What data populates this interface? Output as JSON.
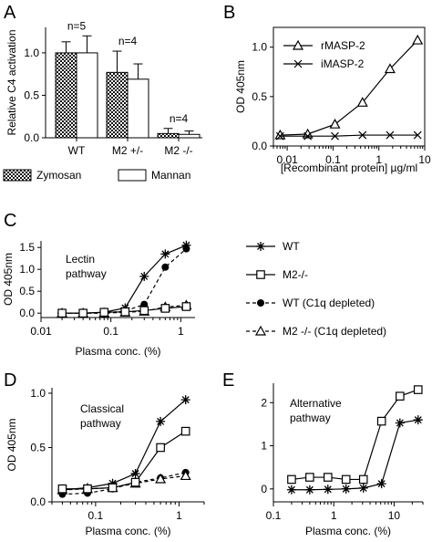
{
  "colors": {
    "ink": "#000000",
    "bar_fill_open": "#ffffff",
    "zymosan_pattern": "checkered-dark"
  },
  "legend_AB": {
    "zymosan": "Zymosan",
    "mannan": "Mannan"
  },
  "legend_CDE": {
    "wt": "WT",
    "m2": "M2-/-",
    "wt_c1q": "WT (C1q depleted)",
    "m2_c1q": "M2 -/- (C1q depleted)"
  },
  "chart_data": [
    {
      "panel": "A",
      "type": "bar",
      "ylabel": "Relative C4 activation",
      "ylim": [
        0,
        1.3
      ],
      "yticks": [
        "0.0",
        "0.5",
        "1.0"
      ],
      "categories": [
        "WT",
        "M2 +/-",
        "M2 -/-"
      ],
      "annotations": [
        "n=5",
        "n=4",
        "n=4"
      ],
      "series": [
        {
          "name": "Zymosan",
          "values": [
            1.0,
            0.77,
            0.05
          ],
          "errors": [
            0.13,
            0.25,
            0.06
          ]
        },
        {
          "name": "Mannan",
          "values": [
            1.0,
            0.69,
            0.04
          ],
          "errors": [
            0.2,
            0.18,
            0.04
          ]
        }
      ],
      "legend": "bottom"
    },
    {
      "panel": "B",
      "type": "line",
      "xlabel": "[Recombinant protein] µg/ml",
      "ylabel": "OD 405nm",
      "xscale": "log",
      "xlim": [
        0.005,
        10
      ],
      "ylim": [
        0,
        1.2
      ],
      "xticks": [
        "0.01",
        "0.1",
        "1",
        "10"
      ],
      "yticks": [
        "0.0",
        "0.5",
        "1.0"
      ],
      "series": [
        {
          "name": "rMASP-2",
          "marker": "triangle",
          "x": [
            0.007,
            0.028,
            0.11,
            0.44,
            1.75,
            7
          ],
          "y": [
            0.11,
            0.12,
            0.22,
            0.44,
            0.78,
            1.07
          ]
        },
        {
          "name": "iMASP-2",
          "marker": "x",
          "x": [
            0.007,
            0.028,
            0.11,
            0.44,
            1.75,
            7
          ],
          "y": [
            0.1,
            0.1,
            0.1,
            0.11,
            0.11,
            0.11
          ]
        }
      ],
      "legend": "top-left"
    },
    {
      "panel": "C",
      "type": "line",
      "annotation": "Lectin\npathway",
      "xlabel": "Plasma conc. (%)",
      "ylabel": "OD 405nm",
      "xscale": "log",
      "xlim": [
        0.01,
        1.6
      ],
      "ylim": [
        -0.1,
        1.65
      ],
      "xticks": [
        "0.01",
        "0.1",
        "1"
      ],
      "yticks": [
        "0.0",
        "0.5",
        "1.0",
        "1.5"
      ],
      "series": [
        {
          "name": "WT",
          "marker": "star",
          "x": [
            0.02,
            0.04,
            0.08,
            0.16,
            0.3,
            0.6,
            1.2
          ],
          "y": [
            0.0,
            0.0,
            0.02,
            0.12,
            0.84,
            1.35,
            1.55
          ]
        },
        {
          "name": "M2-/-",
          "marker": "square",
          "x": [
            0.02,
            0.04,
            0.08,
            0.16,
            0.3,
            0.6,
            1.2
          ],
          "y": [
            0.0,
            0.0,
            0.02,
            0.03,
            0.06,
            0.11,
            0.15
          ]
        },
        {
          "name": "WT (C1q depleted)",
          "marker": "circle",
          "x": [
            0.02,
            0.04,
            0.08,
            0.16,
            0.3,
            0.6,
            1.2
          ],
          "y": [
            0.0,
            0.0,
            0.0,
            0.05,
            0.2,
            1.05,
            1.47
          ]
        },
        {
          "name": "M2 -/- (C1q depleted)",
          "marker": "triangle",
          "x": [
            0.02,
            0.04,
            0.08,
            0.16,
            0.3,
            0.6,
            1.2
          ],
          "y": [
            0.0,
            0.0,
            0.0,
            0.02,
            0.04,
            0.14,
            0.18
          ]
        }
      ],
      "legend": "right"
    },
    {
      "panel": "D",
      "type": "line",
      "annotation": "Classical\npathway",
      "xlabel": "Plasma conc. (%)",
      "ylabel": "OD 405nm",
      "xscale": "log",
      "xlim": [
        0.03,
        2
      ],
      "ylim": [
        0,
        1.05
      ],
      "xticks": [
        "0.1",
        "1"
      ],
      "yticks": [
        "0.0",
        "0.5",
        "1.0"
      ],
      "series": [
        {
          "name": "WT",
          "marker": "star",
          "x": [
            0.04,
            0.08,
            0.16,
            0.3,
            0.6,
            1.2
          ],
          "y": [
            0.11,
            0.13,
            0.17,
            0.26,
            0.74,
            0.94
          ]
        },
        {
          "name": "M2-/-",
          "marker": "square",
          "x": [
            0.04,
            0.08,
            0.16,
            0.3,
            0.6,
            1.2
          ],
          "y": [
            0.12,
            0.12,
            0.13,
            0.18,
            0.5,
            0.65
          ]
        },
        {
          "name": "WT (C1q depleted)",
          "marker": "circle",
          "x": [
            0.04,
            0.08,
            0.16,
            0.3,
            0.6,
            1.2
          ],
          "y": [
            0.07,
            0.08,
            0.12,
            0.18,
            0.22,
            0.27
          ]
        },
        {
          "name": "M2 -/- (C1q depleted)",
          "marker": "triangle",
          "x": [
            0.04,
            0.08,
            0.16,
            0.3,
            0.6,
            1.2
          ],
          "y": [
            0.11,
            0.12,
            0.13,
            0.17,
            0.21,
            0.24
          ]
        }
      ]
    },
    {
      "panel": "E",
      "type": "line",
      "annotation": "Alternative\npathway",
      "xlabel": "Plasma conc. (%)",
      "ylabel": "",
      "xscale": "log",
      "xlim": [
        0.1,
        30
      ],
      "ylim": [
        -0.3,
        2.45
      ],
      "xticks": [
        "0.1",
        "1",
        "10"
      ],
      "yticks": [
        "0",
        "1",
        "2"
      ],
      "series": [
        {
          "name": "WT",
          "marker": "star",
          "x": [
            0.2,
            0.4,
            0.8,
            1.6,
            3.1,
            6.2,
            12.5,
            25
          ],
          "y": [
            -0.02,
            -0.02,
            -0.01,
            0.0,
            0.02,
            0.12,
            1.53,
            1.6
          ]
        },
        {
          "name": "M2-/-",
          "marker": "square",
          "x": [
            0.2,
            0.4,
            0.8,
            1.6,
            3.1,
            6.2,
            12.5,
            25
          ],
          "y": [
            0.22,
            0.27,
            0.27,
            0.22,
            0.22,
            1.57,
            2.15,
            2.3
          ]
        }
      ]
    }
  ]
}
